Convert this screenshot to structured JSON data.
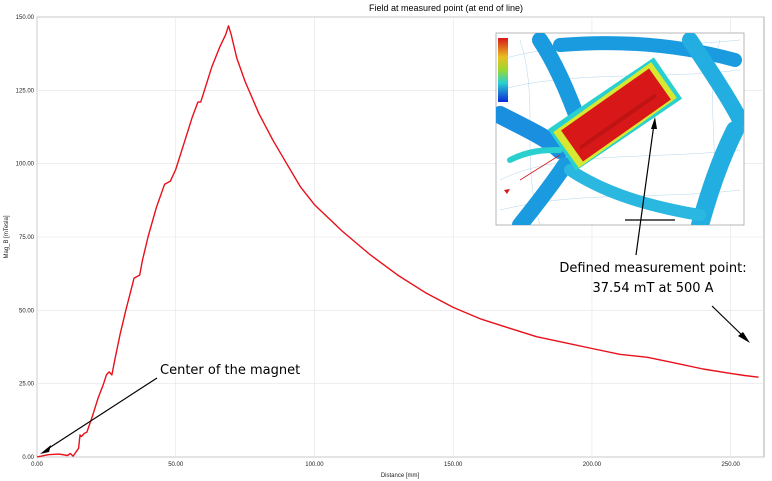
{
  "chart_data": {
    "type": "line",
    "title": "Field at measured point (at end of line)",
    "xlabel": "Distance [mm]",
    "ylabel": "Mag_B [mTesla]",
    "xlim": [
      0,
      262
    ],
    "ylim": [
      0,
      150
    ],
    "x_ticks": [
      "0.00",
      "50.00",
      "100.00",
      "150.00",
      "200.00",
      "250.00"
    ],
    "y_ticks": [
      "0.00",
      "25.00",
      "50.00",
      "75.00",
      "100.00",
      "125.00",
      "150.00"
    ],
    "grid": true,
    "legend": "none",
    "series": [
      {
        "color": "#e8101a",
        "x": [
          0,
          4,
          8,
          11,
          12,
          13,
          15,
          15.5,
          16,
          17,
          18,
          20,
          22,
          24,
          25,
          26,
          27,
          28,
          30,
          32,
          35,
          37,
          38,
          40,
          43,
          46,
          48,
          49,
          50,
          53,
          56,
          58,
          59,
          60,
          63,
          66,
          68,
          69,
          70,
          72,
          75,
          80,
          85,
          90,
          95,
          100,
          110,
          120,
          130,
          140,
          150,
          160,
          170,
          180,
          190,
          200,
          210,
          220,
          230,
          240,
          250,
          255,
          260
        ],
        "values": [
          0,
          0.8,
          1.0,
          0.5,
          1.2,
          0.3,
          3.0,
          7.5,
          7.0,
          8.0,
          8.5,
          14,
          20,
          25,
          28,
          29,
          28,
          33,
          42,
          50,
          61,
          62,
          67,
          75,
          85,
          93,
          94,
          96,
          98,
          107,
          116,
          121,
          121,
          124,
          133,
          140,
          144,
          147,
          144,
          136,
          128,
          117,
          108,
          100,
          92,
          86,
          77,
          69,
          62,
          56,
          51,
          47,
          44,
          41,
          39,
          37,
          35,
          34,
          32,
          30,
          28.5,
          27.8,
          27.2
        ],
        "note_y_values_are_approximate": ""
      }
    ],
    "annotations": [
      {
        "text": "Center of the magnet"
      },
      {
        "text_line1": "Defined measurement point:",
        "text_line2": "37.54 mT at 500 A"
      }
    ]
  },
  "inset": {
    "image_name": "field-simulation-inset",
    "colors": [
      "#0a2ad8",
      "#1a9be0",
      "#2ad0d0",
      "#d8e830",
      "#d81818"
    ]
  }
}
